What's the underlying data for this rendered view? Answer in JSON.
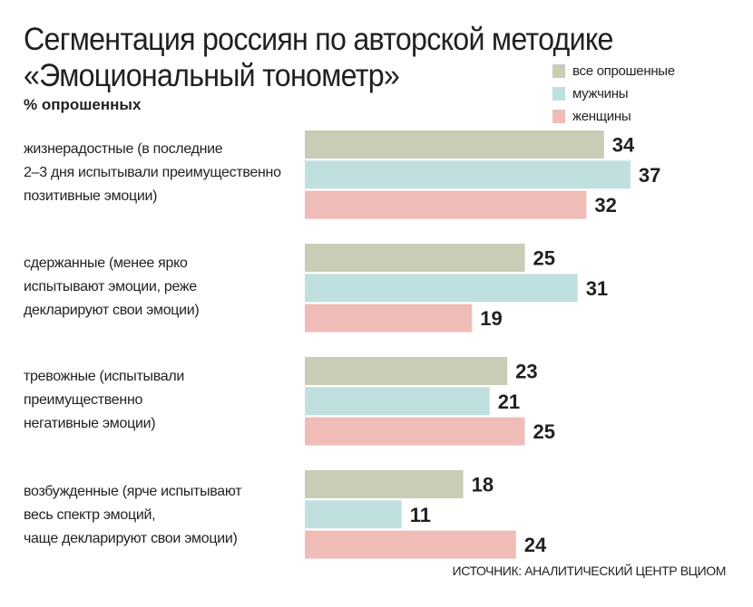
{
  "chart_data": {
    "type": "bar",
    "orientation": "horizontal",
    "title": "Сегментация россиян по авторской методике «Эмоциональный тонометр»",
    "title_lines": [
      "Сегментация россиян по авторской методике",
      "«Эмоциональный тонометр»"
    ],
    "subtitle": "% опрошенных",
    "categories": [
      "жизнерадостные (в последние\n2–3 дня испытывали преимущественно\nпозитивные эмоции)",
      "сдержанные (менее ярко\nиспытывают эмоции, реже\nдекларируют свои эмоции)",
      "тревожные (испытывали\nпреимущественно\nнегативные эмоции)",
      "возбужденные (ярче испытывают\nвесь спектр эмоций,\nчаще декларируют свои эмоции)"
    ],
    "series": [
      {
        "name": "все опрошенные",
        "color": "#c9cdb6",
        "values": [
          34,
          25,
          23,
          18
        ]
      },
      {
        "name": "мужчины",
        "color": "#bfe0df",
        "values": [
          37,
          31,
          21,
          11
        ]
      },
      {
        "name": "женщины",
        "color": "#f0bcb8",
        "values": [
          32,
          19,
          25,
          24
        ]
      }
    ],
    "legend_position": "top-right",
    "grid": false,
    "data_labels": true,
    "xlim": [
      0,
      40
    ]
  },
  "source": "ИСТОЧНИК: АНАЛИТИЧЕСКИЙ ЦЕНТР ВЦИОМ"
}
